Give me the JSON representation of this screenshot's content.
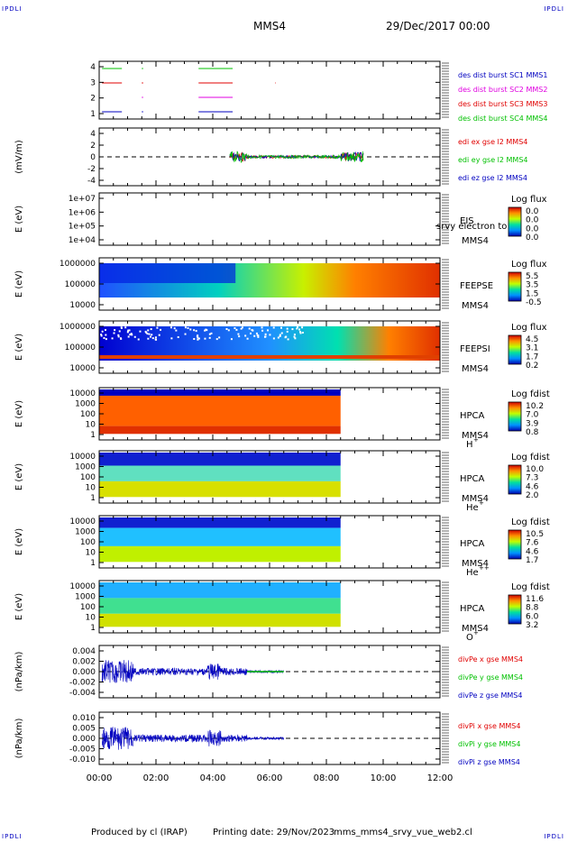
{
  "corner_label": "IPDLI",
  "header": {
    "spacecraft": "MMS4",
    "date": "29/Dec/2017 00:00"
  },
  "footer": {
    "produced_by": "Produced by cl (IRAP)",
    "printing_date": "Printing date: 29/Nov/2023",
    "filename": "mms_mms4_srvy_vue_web2.cl"
  },
  "x_axis": {
    "tick_labels": [
      "00:00",
      "02:00",
      "04:00",
      "06:00",
      "08:00",
      "10:00",
      "12:00"
    ]
  },
  "colors": {
    "mms1": "#0000c0",
    "mms2": "#e000e0",
    "mms3": "#e00000",
    "mms4": "#00c000",
    "frame": "#000000"
  },
  "panels": [
    {
      "id": "burst",
      "ylabel": "",
      "yticks": [
        "4",
        "3",
        "2",
        "1"
      ],
      "legend": [
        {
          "text": "des dist burst SC1 MMS1",
          "color": "#0000c0"
        },
        {
          "text": "des dist burst SC2 MMS2",
          "color": "#e000e0"
        },
        {
          "text": "des dist burst SC3 MMS3",
          "color": "#e00000"
        },
        {
          "text": "des dist burst SC4 MMS4",
          "color": "#00c000"
        }
      ]
    },
    {
      "id": "edi",
      "ylabel": "(mV/m)",
      "yticks": [
        "4",
        "2",
        "0",
        "-2",
        "-4"
      ],
      "legend": [
        {
          "text": "edi ex gse l2 MMS4",
          "color": "#e00000"
        },
        {
          "text": "edi ey gse l2 MMS4",
          "color": "#00c000"
        },
        {
          "text": "edi ez gse l2 MMS4",
          "color": "#0000c0"
        }
      ]
    },
    {
      "id": "eis",
      "ylabel": "E (eV)",
      "yticks": [
        "1e+07",
        "1e+06",
        "1e+05",
        "1e+04"
      ],
      "labels": [
        "EIS",
        "MMS4"
      ],
      "overlay": "srvy electron to",
      "cbar_title": "Log flux",
      "cbar_ticks": [
        "0.0",
        "0.0",
        "0.0",
        "0.0"
      ]
    },
    {
      "id": "feepse",
      "ylabel": "E (eV)",
      "yticks": [
        "1000000",
        "100000",
        "10000"
      ],
      "labels": [
        "FEEPSE",
        "MMS4"
      ],
      "cbar_title": "Log flux",
      "cbar_ticks": [
        "5.5",
        "3.5",
        "1.5",
        "-0.5"
      ]
    },
    {
      "id": "feepsi",
      "ylabel": "E (eV)",
      "yticks": [
        "1000000",
        "100000",
        "10000"
      ],
      "labels": [
        "FEEPSI",
        "MMS4"
      ],
      "cbar_title": "Log flux",
      "cbar_ticks": [
        "4.5",
        "3.1",
        "1.7",
        "0.2"
      ]
    },
    {
      "id": "hpca_h",
      "ylabel": "E (eV)",
      "yticks": [
        "10000",
        "1000",
        "100",
        "10",
        "1"
      ],
      "labels": [
        "HPCA",
        "MMS4"
      ],
      "species": "H",
      "charge": "+",
      "cbar_title": "Log fdist",
      "cbar_ticks": [
        "10.2",
        "7.0",
        "3.9",
        "0.8"
      ]
    },
    {
      "id": "hpca_he",
      "ylabel": "E (eV)",
      "yticks": [
        "10000",
        "1000",
        "100",
        "10",
        "1"
      ],
      "labels": [
        "HPCA",
        "MMS4"
      ],
      "species": "He",
      "charge": "+",
      "cbar_title": "Log fdist",
      "cbar_ticks": [
        "10.0",
        "7.3",
        "4.6",
        "2.0"
      ]
    },
    {
      "id": "hpca_hepp",
      "ylabel": "E (eV)",
      "yticks": [
        "10000",
        "1000",
        "100",
        "10",
        "1"
      ],
      "labels": [
        "HPCA",
        "MMS4"
      ],
      "species": "He",
      "charge": "++",
      "cbar_title": "Log fdist",
      "cbar_ticks": [
        "10.5",
        "7.6",
        "4.6",
        "1.7"
      ]
    },
    {
      "id": "hpca_o",
      "ylabel": "E (eV)",
      "yticks": [
        "10000",
        "1000",
        "100",
        "10",
        "1"
      ],
      "labels": [
        "HPCA",
        "MMS4"
      ],
      "species": "O",
      "charge": "+",
      "cbar_title": "Log fdist",
      "cbar_ticks": [
        "11.6",
        "8.8",
        "6.0",
        "3.2"
      ]
    },
    {
      "id": "divpe",
      "ylabel": "(nPa/km)",
      "yticks": [
        "0.004",
        "0.002",
        "0.000",
        "-0.002",
        "-0.004"
      ],
      "legend": [
        {
          "text": "divPe x gse MMS4",
          "color": "#e00000"
        },
        {
          "text": "divPe y gse MMS4",
          "color": "#00c000"
        },
        {
          "text": "divPe z gse MMS4",
          "color": "#0000c0"
        }
      ]
    },
    {
      "id": "divpi",
      "ylabel": "(nPa/km)",
      "yticks": [
        "0.010",
        "0.005",
        "0.000",
        "-0.005",
        "-0.010"
      ],
      "legend": [
        {
          "text": "divPi x gse MMS4",
          "color": "#e00000"
        },
        {
          "text": "divPi y gse MMS4",
          "color": "#00c000"
        },
        {
          "text": "divPi z gse MMS4",
          "color": "#0000c0"
        }
      ]
    }
  ],
  "chart_data": {
    "type": "heatmap",
    "x_range_hours": [
      0,
      12
    ],
    "data_coverage_end_hours": {
      "edi": 9.3,
      "feepse": 12,
      "feepsi": 12,
      "hpca": 8.5,
      "divpe": 6.5,
      "divpi": 6.5
    },
    "burst_intervals_hours": {
      "mms1": [
        [
          0.1,
          0.8
        ],
        [
          1.5,
          1.55
        ],
        [
          3.5,
          4.7
        ]
      ],
      "mms2": [
        [
          1.5,
          1.55
        ],
        [
          3.5,
          4.7
        ]
      ],
      "mms3": [
        [
          0.1,
          0.8
        ],
        [
          1.5,
          1.55
        ],
        [
          3.5,
          4.7
        ],
        [
          6.2,
          6.22
        ]
      ],
      "mms4": [
        [
          0.1,
          0.8
        ],
        [
          1.5,
          1.55
        ],
        [
          3.5,
          4.7
        ]
      ]
    }
  }
}
